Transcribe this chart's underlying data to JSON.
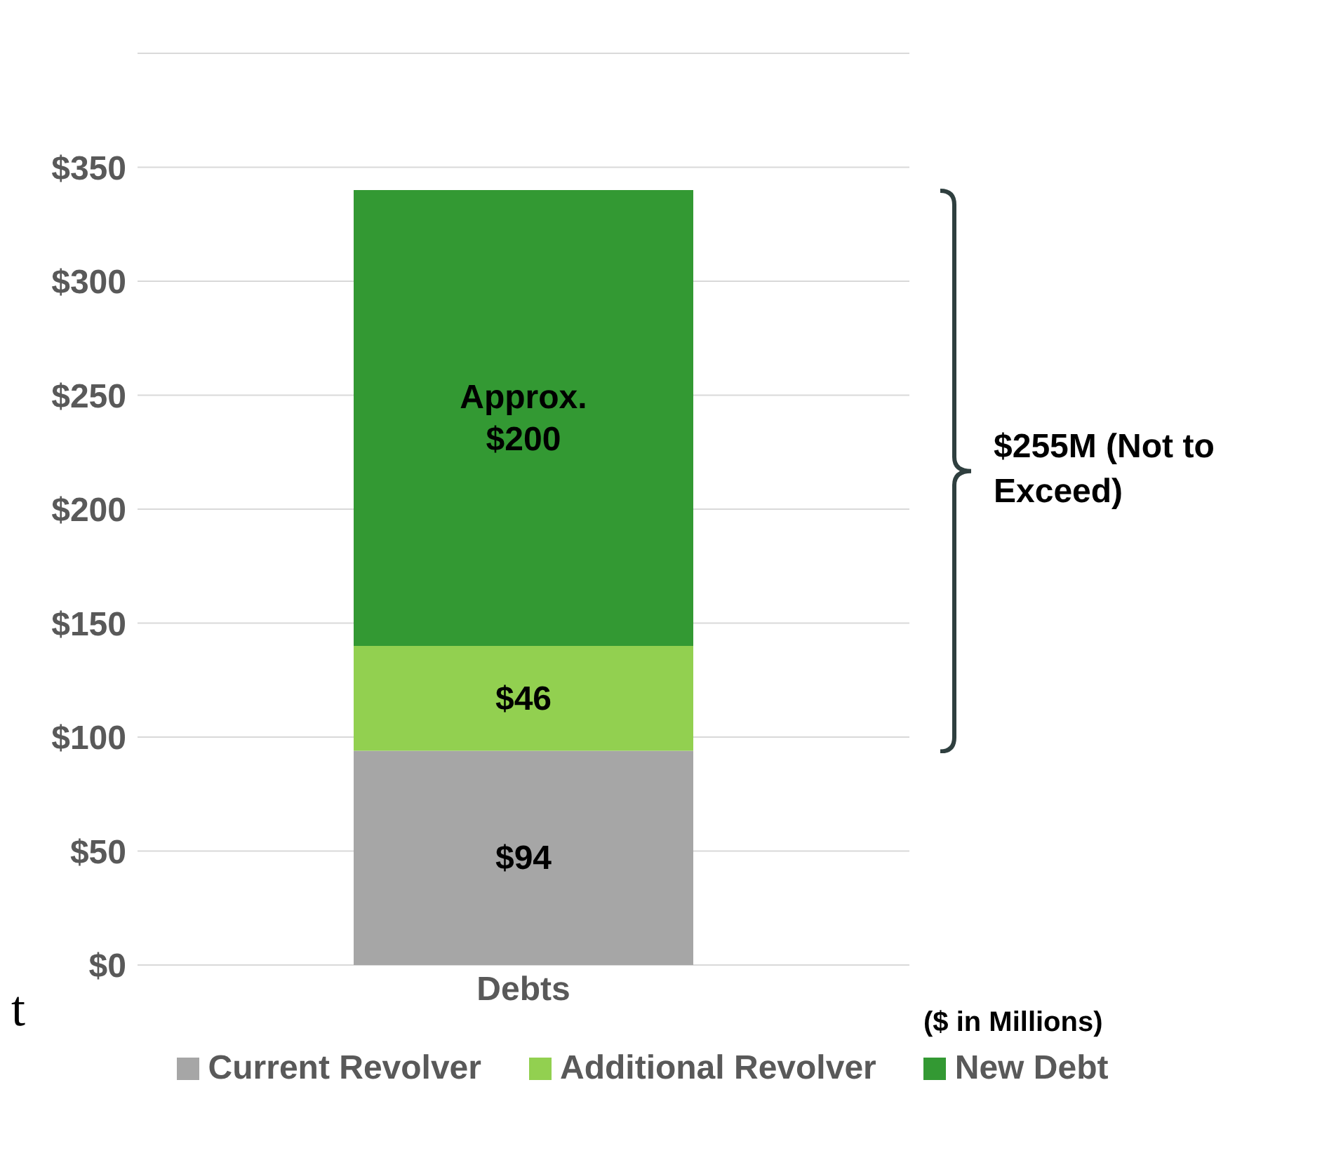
{
  "chart_data": {
    "type": "bar",
    "categories": [
      "Debts"
    ],
    "stacked": true,
    "series": [
      {
        "name": "Current Revolver",
        "color": "#a6a6a6",
        "values": [
          94
        ],
        "value_labels": [
          "$94"
        ]
      },
      {
        "name": "Additional Revolver",
        "color": "#92d050",
        "values": [
          46
        ],
        "value_labels": [
          "$46"
        ]
      },
      {
        "name": "New Debt",
        "color": "#339933",
        "values": [
          200
        ],
        "value_labels": [
          "Approx. $200"
        ]
      }
    ],
    "ylim": [
      0,
      400
    ],
    "yticks": [
      {
        "value": 0,
        "label": "$0"
      },
      {
        "value": 50,
        "label": "$50"
      },
      {
        "value": 100,
        "label": "$100"
      },
      {
        "value": 150,
        "label": "$150"
      },
      {
        "value": 200,
        "label": "$200"
      },
      {
        "value": 250,
        "label": "$250"
      },
      {
        "value": 300,
        "label": "$300"
      },
      {
        "value": 350,
        "label": "$350"
      }
    ],
    "grid": "y",
    "legend": "bottom",
    "annotations": [
      "$255M (Not to Exceed)",
      "($ in Millions)",
      "t"
    ]
  }
}
